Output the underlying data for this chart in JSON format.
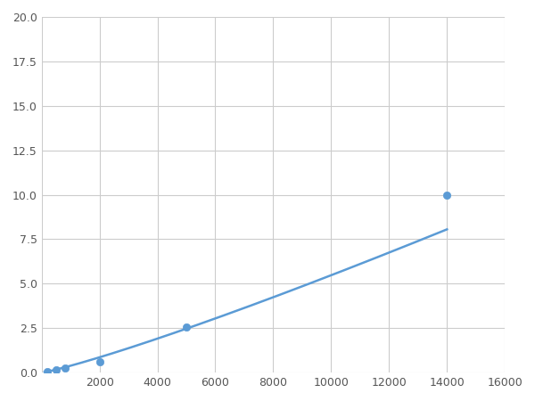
{
  "x": [
    200,
    500,
    800,
    2000,
    5000,
    14000
  ],
  "y": [
    0.08,
    0.18,
    0.25,
    0.62,
    2.55,
    10.0
  ],
  "line_color": "#5B9BD5",
  "marker_color": "#5B9BD5",
  "marker_size": 6,
  "xlim": [
    0,
    16000
  ],
  "ylim": [
    0,
    20.0
  ],
  "xticks": [
    0,
    2000,
    4000,
    6000,
    8000,
    10000,
    12000,
    14000,
    16000
  ],
  "yticks": [
    0.0,
    2.5,
    5.0,
    7.5,
    10.0,
    12.5,
    15.0,
    17.5,
    20.0
  ],
  "grid": true,
  "background_color": "#ffffff",
  "grid_color": "#cccccc"
}
